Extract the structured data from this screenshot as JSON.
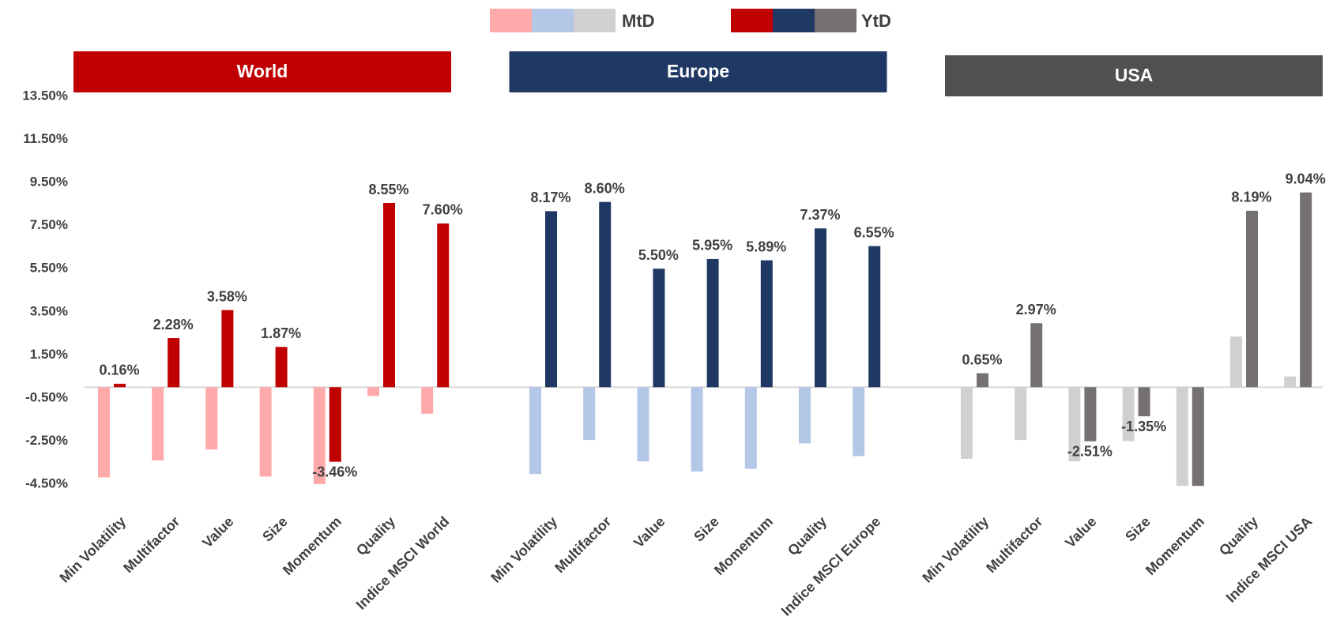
{
  "chart_data": {
    "type": "bar",
    "legend": [
      "MtD",
      "YtD"
    ],
    "ylim": [
      -4.8,
      13.5
    ],
    "yticks": [
      {
        "value": 13.5,
        "label": "13.50%"
      },
      {
        "value": 11.5,
        "label": "11.50%"
      },
      {
        "value": 9.5,
        "label": "9.50%"
      },
      {
        "value": 7.5,
        "label": "7.50%"
      },
      {
        "value": 5.5,
        "label": "5.50%"
      },
      {
        "value": 3.5,
        "label": "3.50%"
      },
      {
        "value": 1.5,
        "label": "1.50%"
      },
      {
        "value": -0.5,
        "label": "-0.50%"
      },
      {
        "value": -2.5,
        "label": "-2.50%"
      },
      {
        "value": -4.5,
        "label": "-4.50%"
      }
    ],
    "groups": [
      {
        "title": "World",
        "color": "#c00000",
        "categories": [
          "Min Volatility",
          "Multifactor",
          "Value",
          "Size",
          "Momentum",
          "Quality",
          "Indice MSCI World"
        ],
        "series": [
          {
            "color": "#ffaaaa",
            "values": [
              -4.19,
              -3.4,
              -2.89,
              -4.15,
              -4.5,
              -0.41,
              -1.23
            ]
          },
          {
            "color": "#c00000",
            "values": [
              0.16,
              2.28,
              3.58,
              1.87,
              -3.46,
              8.55,
              7.6
            ],
            "value_labels": [
              "0.16%",
              "2.28%",
              "3.58%",
              "1.87%",
              "-3.46%",
              "8.55%",
              "7.60%"
            ]
          }
        ]
      },
      {
        "title": "Europe",
        "color": "#203864",
        "categories": [
          "Min Volatility",
          "Multifactor",
          "Value",
          "Size",
          "Momentum",
          "Quality",
          "Indice MSCI Europe"
        ],
        "series": [
          {
            "color": "#b4c7e7",
            "values": [
              -4.03,
              -2.45,
              -3.44,
              -3.91,
              -3.79,
              -2.61,
              -3.2
            ]
          },
          {
            "color": "#1f3864",
            "values": [
              8.17,
              8.6,
              5.5,
              5.95,
              5.89,
              7.37,
              6.55
            ],
            "value_labels": [
              "8.17%",
              "8.60%",
              "5.50%",
              "5.95%",
              "5.89%",
              "7.37%",
              "6.55%"
            ]
          }
        ]
      },
      {
        "title": "USA",
        "color": "#505050",
        "categories": [
          "Min Volatility",
          "Multifactor",
          "Value",
          "Size",
          "Momentum",
          "Quality",
          "Indice MSCI USA"
        ],
        "series": [
          {
            "color": "#d0d0d0",
            "values": [
              -3.32,
              -2.45,
              -3.44,
              -2.5,
              -4.58,
              2.35,
              0.5
            ]
          },
          {
            "color": "#767171",
            "values": [
              0.65,
              2.97,
              -2.51,
              -1.35,
              -4.58,
              8.19,
              9.04
            ],
            "value_labels": [
              "0.65%",
              "2.97%",
              "-2.51%",
              "-1.35%",
              null,
              "8.19%",
              "9.04%"
            ]
          }
        ]
      }
    ]
  }
}
